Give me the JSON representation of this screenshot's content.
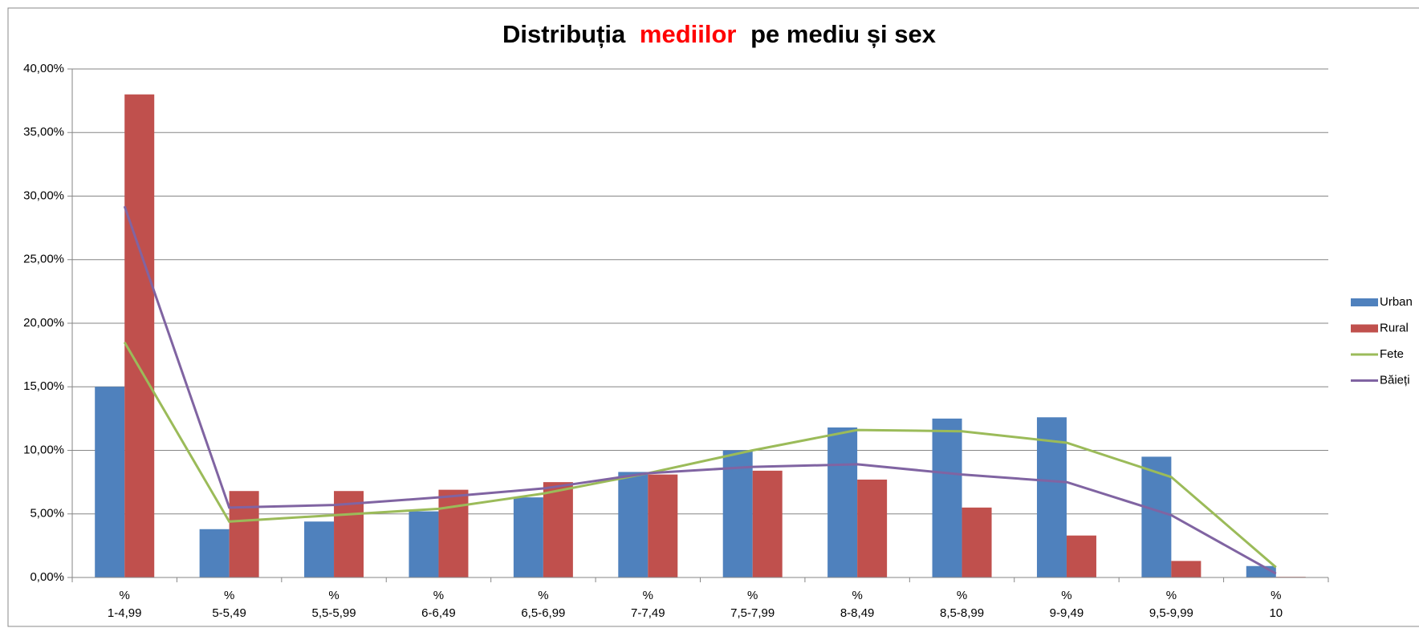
{
  "chart_data": {
    "type": "bar",
    "title": [
      "Distribuția",
      "mediilor",
      "pe mediu și sex"
    ],
    "title_colors": [
      "#000000",
      "#ff0000",
      "#000000"
    ],
    "categories": [
      [
        "%",
        "1-4,99"
      ],
      [
        "%",
        "5-5,49"
      ],
      [
        "%",
        "5,5-5,99"
      ],
      [
        "%",
        "6-6,49"
      ],
      [
        "%",
        "6,5-6,99"
      ],
      [
        "%",
        "7-7,49"
      ],
      [
        "%",
        "7,5-7,99"
      ],
      [
        "%",
        "8-8,49"
      ],
      [
        "%",
        "8,5-8,99"
      ],
      [
        "%",
        "9-9,49"
      ],
      [
        "%",
        "9,5-9,99"
      ],
      [
        "%",
        "10"
      ]
    ],
    "series": [
      {
        "name": "Urban",
        "type": "bar",
        "color": "#4f81bd",
        "values": [
          15.0,
          3.8,
          4.4,
          5.2,
          6.3,
          8.3,
          10.0,
          11.8,
          12.5,
          12.6,
          9.5,
          0.9
        ]
      },
      {
        "name": "Rural",
        "type": "bar",
        "color": "#c0504d",
        "values": [
          38.0,
          6.8,
          6.8,
          6.9,
          7.5,
          8.1,
          8.4,
          7.7,
          5.5,
          3.3,
          1.3,
          0.05
        ]
      },
      {
        "name": "Fete",
        "type": "line",
        "color": "#9bbb59",
        "values": [
          18.5,
          4.4,
          4.9,
          5.4,
          6.6,
          8.2,
          10.0,
          11.6,
          11.5,
          10.6,
          7.9,
          0.8
        ]
      },
      {
        "name": "Băieți",
        "type": "line",
        "color": "#8064a2",
        "values": [
          29.2,
          5.5,
          5.7,
          6.3,
          7.0,
          8.2,
          8.7,
          8.9,
          8.1,
          7.5,
          4.9,
          0.3
        ]
      }
    ],
    "ylim": [
      0,
      40
    ],
    "yticks": [
      {
        "value": 0,
        "label": "0,00%"
      },
      {
        "value": 5,
        "label": "5,00%"
      },
      {
        "value": 10,
        "label": "10,00%"
      },
      {
        "value": 15,
        "label": "15,00%"
      },
      {
        "value": 20,
        "label": "20,00%"
      },
      {
        "value": 25,
        "label": "25,00%"
      },
      {
        "value": 30,
        "label": "30,00%"
      },
      {
        "value": 35,
        "label": "35,00%"
      },
      {
        "value": 40,
        "label": "40,00%"
      }
    ],
    "grid": true,
    "legend": "right"
  }
}
